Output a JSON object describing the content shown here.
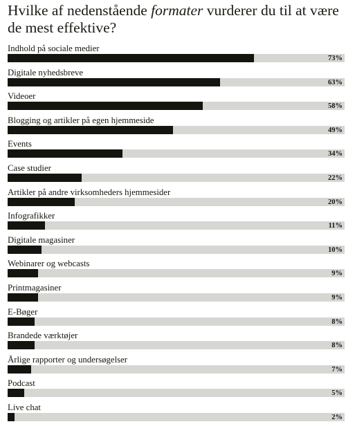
{
  "colors": {
    "bar": "#15150f",
    "track": "#d6d6d3",
    "text": "#151510"
  },
  "chart_data": {
    "type": "bar",
    "orientation": "horizontal",
    "title": {
      "before": "Hvilke af nedenstående ",
      "emphasis": "formater",
      "after": " vurderer du til at være de mest effektive?"
    },
    "xlim": [
      0,
      100
    ],
    "unit": "%",
    "categories": [
      "Indhold på sociale medier",
      "Digitale nyhedsbreve",
      "Videoer",
      "Blogging og artikler på egen hjemmeside",
      "Events",
      "Case studier",
      "Artikler på andre virksomheders hjemmesider",
      "Infografikker",
      "Digitale magasiner",
      "Webinarer og webcasts",
      "Printmagasiner",
      "E-Bøger",
      "Brandede værktøjer",
      "Årlige rapporter og undersøgelser",
      "Podcast",
      "Live chat"
    ],
    "values": [
      73,
      63,
      58,
      49,
      34,
      22,
      20,
      11,
      10,
      9,
      9,
      8,
      8,
      7,
      5,
      2
    ],
    "value_labels": [
      "73%",
      "63%",
      "58%",
      "49%",
      "34%",
      "22%",
      "20%",
      "11%",
      "10%",
      "9%",
      "9%",
      "8%",
      "8%",
      "7%",
      "5%",
      "2%"
    ]
  }
}
